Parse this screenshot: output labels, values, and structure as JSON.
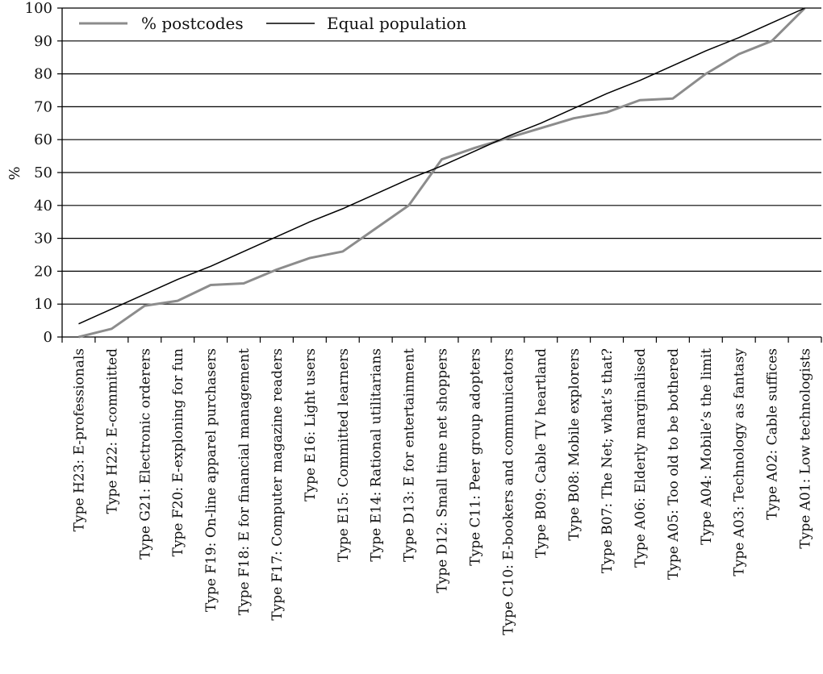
{
  "chart_data": {
    "type": "line",
    "title": "",
    "xlabel": "",
    "ylabel": "%",
    "ylim": [
      0,
      100
    ],
    "yticks": [
      0,
      10,
      20,
      30,
      40,
      50,
      60,
      70,
      80,
      90,
      100
    ],
    "grid": "horizontal",
    "legend_position": "top-left",
    "categories": [
      "Type H23: E-professionals",
      "Type H22: E-committed",
      "Type G21: Electronic orderers",
      "Type F20: E-exploning for fun",
      "Type F19: On-line apparel purchasers",
      "Type F18: E for financial management",
      "Type F17: Computer magazine readers",
      "Type E16: Light users",
      "Type E15: Committed learners",
      "Type E14: Rational utilitarians",
      "Type D13: E for entertainment",
      "Type D12: Small time net shoppers",
      "Type C11: Peer group adopters",
      "Type C10: E-bookers and communicators",
      "Type B09: Cable TV heartland",
      "Type B08: Mobile explorers",
      "Type B07: The Net; what’s that?",
      "Type A06: Elderly marginalised",
      "Type A05: Too old to be bothered",
      "Type A04: Mobile’s the limit",
      "Type A03: Technology as fantasy",
      "Type A02: Cable suffices",
      "Type A01: Low technologists"
    ],
    "series": [
      {
        "name": "% postcodes",
        "color": "#8c8c8c",
        "values": [
          0,
          2.5,
          9.5,
          11,
          15.8,
          16.3,
          20.5,
          24,
          26,
          33,
          40,
          54,
          57.5,
          60.5,
          63.5,
          66.5,
          68.3,
          72,
          72.5,
          80,
          86,
          90,
          100
        ]
      },
      {
        "name": "Equal population",
        "color": "#000000",
        "values": [
          4,
          8.5,
          13,
          17.5,
          21.5,
          26,
          30.5,
          35,
          39,
          43.5,
          48,
          52,
          56.5,
          61,
          65,
          69.5,
          74,
          78,
          82.5,
          87,
          91,
          95.5,
          100
        ]
      }
    ]
  }
}
